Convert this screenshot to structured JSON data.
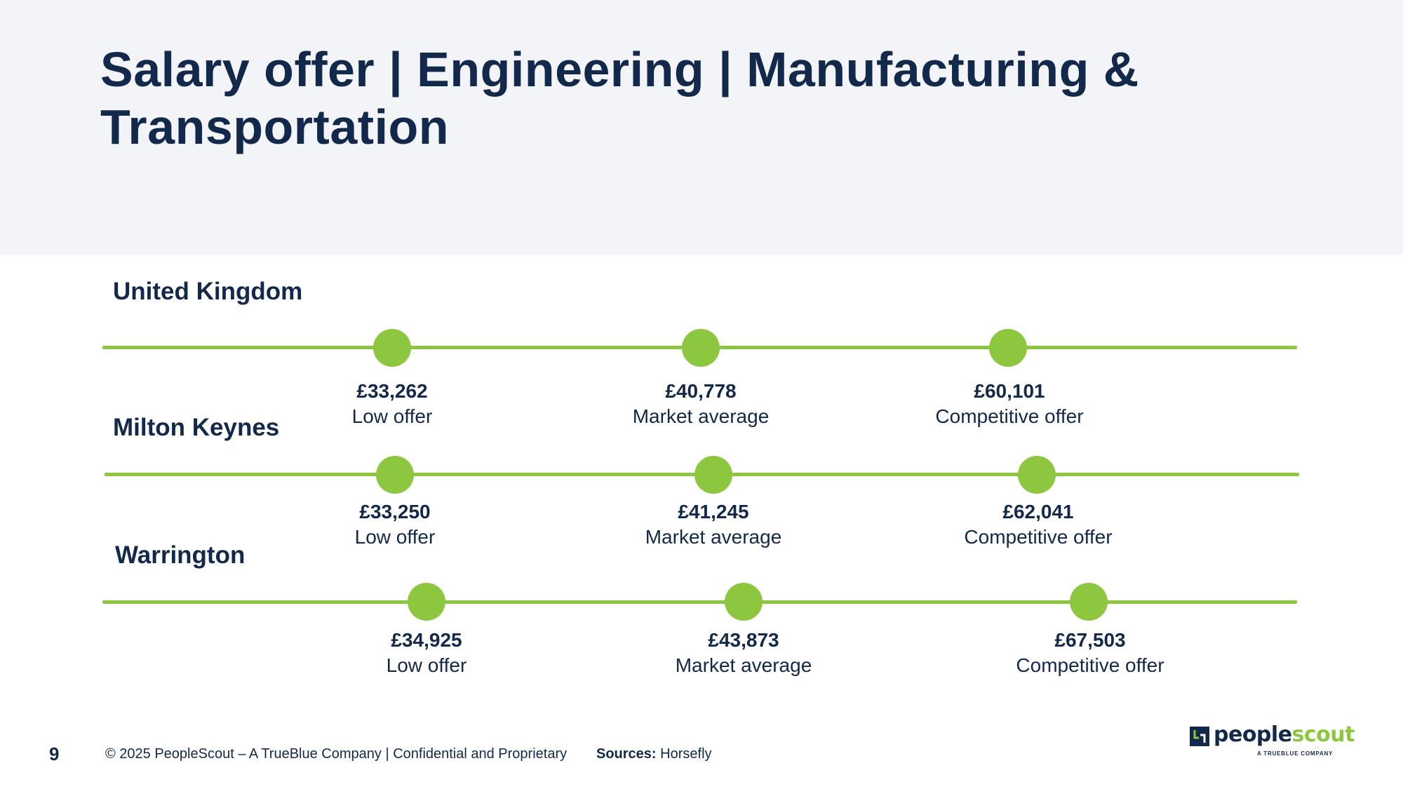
{
  "slide": {
    "title": "Salary offer | Engineering | Manufacturing & Transportation",
    "page_number": "9"
  },
  "colors": {
    "navy": "#13294b",
    "green": "#8dc63f",
    "header_bg": "#f2f4f7"
  },
  "regions": [
    {
      "name": "United Kingdom",
      "markers": [
        {
          "value": "£33,262",
          "label": "Low offer"
        },
        {
          "value": "£40,778",
          "label": "Market average"
        },
        {
          "value": "£60,101",
          "label": "Competitive offer"
        }
      ]
    },
    {
      "name": "Milton Keynes",
      "markers": [
        {
          "value": "£33,250",
          "label": "Low offer"
        },
        {
          "value": "£41,245",
          "label": "Market average"
        },
        {
          "value": "£62,041",
          "label": "Competitive offer"
        }
      ]
    },
    {
      "name": "Warrington",
      "markers": [
        {
          "value": "£34,925",
          "label": "Low offer"
        },
        {
          "value": "£43,873",
          "label": "Market average"
        },
        {
          "value": "£67,503",
          "label": "Competitive offer"
        }
      ]
    }
  ],
  "footer": {
    "copyright": "© 2025 PeopleScout – A TrueBlue Company  |  Confidential and Proprietary",
    "sources_label": "Sources:",
    "sources_value": "Horsefly"
  },
  "logo": {
    "icon": "peoplescout-mark-icon",
    "word_part1": "people",
    "word_part2": "scout",
    "tagline": "A TRUEBLUE COMPANY"
  }
}
